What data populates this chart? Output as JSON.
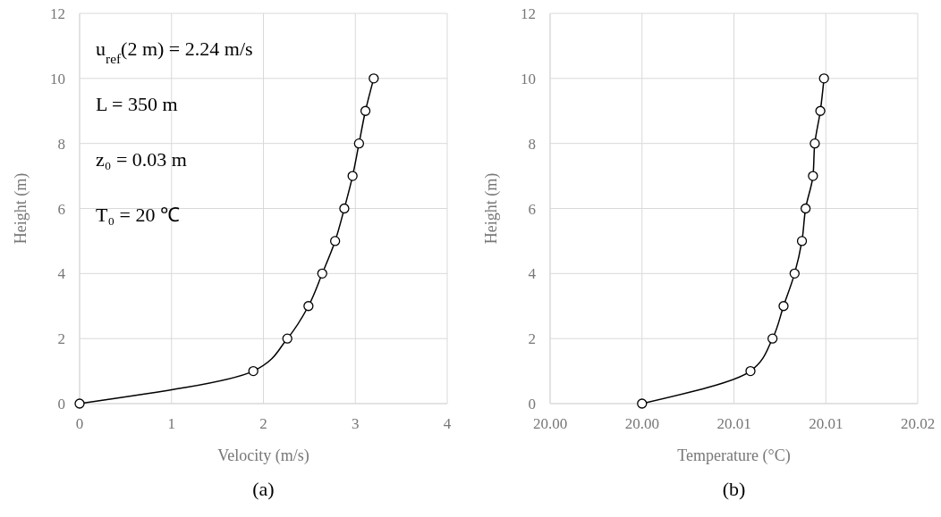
{
  "chart_data": [
    {
      "type": "line",
      "title": "(a)",
      "xlabel": "Velocity (m/s)",
      "ylabel": "Height (m)",
      "xlim": [
        0,
        4
      ],
      "xticks": [
        0,
        1,
        2,
        3,
        4
      ],
      "ylim": [
        0,
        12
      ],
      "yticks": [
        0,
        2,
        4,
        6,
        8,
        10,
        12
      ],
      "grid": true,
      "marker": "circle",
      "line_style": "solid",
      "annotations": [
        "u$_{ref}$(2 m) = 2.24 m/s",
        "L = 350 m",
        "z₀ = 0.03 m",
        "T₀ = 20 ℃"
      ],
      "series": [
        {
          "color": "#000000",
          "x": [
            0,
            1.89,
            2.26,
            2.49,
            2.64,
            2.78,
            2.88,
            2.97,
            3.04,
            3.11,
            3.2
          ],
          "values": [
            0,
            1,
            2,
            3,
            4,
            5,
            6,
            7,
            8,
            9,
            10
          ]
        }
      ]
    },
    {
      "type": "line",
      "title": "(b)",
      "xlabel": "Temperature (°C)",
      "ylabel": "Height (m)",
      "xlim": [
        19.995,
        20.015
      ],
      "xticks": [
        {
          "value": 19.995,
          "label": "20.00"
        },
        {
          "value": 20.0,
          "label": "20.00"
        },
        {
          "value": 20.005,
          "label": "20.01"
        },
        {
          "value": 20.01,
          "label": "20.01"
        },
        {
          "value": 20.015,
          "label": "20.02"
        }
      ],
      "ylim": [
        0,
        12
      ],
      "yticks": [
        0,
        2,
        4,
        6,
        8,
        10,
        12
      ],
      "grid": true,
      "marker": "circle",
      "line_style": "solid",
      "series": [
        {
          "color": "#000000",
          "x": [
            20.0,
            20.0059,
            20.0071,
            20.0077,
            20.0083,
            20.0087,
            20.0089,
            20.0093,
            20.0094,
            20.0097,
            20.0099
          ],
          "values": [
            0,
            1,
            2,
            3,
            4,
            5,
            6,
            7,
            8,
            9,
            10
          ]
        }
      ]
    }
  ]
}
